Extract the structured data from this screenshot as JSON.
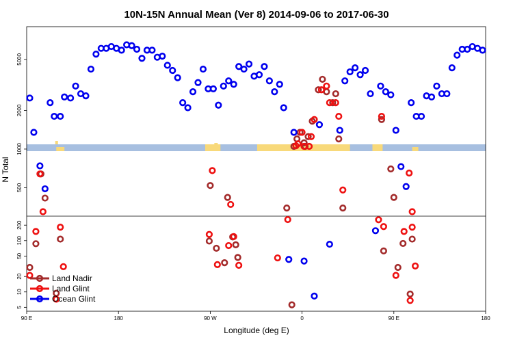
{
  "chart_data": {
    "type": "scatter",
    "title": "10N-15N Annual Mean (Ver 8)   2014-09-06 to 2017-06-30",
    "xlabel": "Longitude (deg E)",
    "ylabel": "N Total",
    "x_ticks": [
      {
        "pos": 0,
        "label": "90 E"
      },
      {
        "pos": 90,
        "label": "180"
      },
      {
        "pos": 180,
        "label": "90 W"
      },
      {
        "pos": 270,
        "label": "0"
      },
      {
        "pos": 360,
        "label": "90 E"
      },
      {
        "pos": 450,
        "label": "180"
      }
    ],
    "xlim": [
      0,
      450
    ],
    "upper_panel": {
      "scale": "log",
      "ylim": [
        300,
        9000
      ],
      "ticks": [
        500,
        1000,
        2000,
        5000
      ]
    },
    "lower_panel": {
      "scale": "log",
      "ylim": [
        4.2,
        300
      ],
      "ticks": [
        5,
        10,
        20,
        50,
        100,
        200
      ]
    },
    "land_strip_color": "#a7bfe0",
    "land_fill_color": "#f8d97a",
    "series": [
      {
        "name": "Land Nadir",
        "color": "#a32b2b",
        "points": [
          [
            3,
            30
          ],
          [
            9,
            87
          ],
          [
            14,
            640
          ],
          [
            18,
            415
          ],
          [
            33,
            107
          ],
          [
            29,
            9.4
          ],
          [
            179,
            98
          ],
          [
            180,
            520
          ],
          [
            186,
            71
          ],
          [
            194,
            37
          ],
          [
            197,
            420
          ],
          [
            202,
            118
          ],
          [
            205,
            83
          ],
          [
            207,
            47
          ],
          [
            260,
            5.6
          ],
          [
            255,
            347
          ],
          [
            262,
            1050
          ],
          [
            265,
            1200
          ],
          [
            268,
            1350
          ],
          [
            272,
            1120
          ],
          [
            273,
            1050
          ],
          [
            276,
            1250
          ],
          [
            280,
            1650
          ],
          [
            286,
            2900
          ],
          [
            290,
            3500
          ],
          [
            294,
            2800
          ],
          [
            300,
            2300
          ],
          [
            303,
            2700
          ],
          [
            306,
            1200
          ],
          [
            310,
            347
          ],
          [
            348,
            1700
          ],
          [
            350,
            63
          ],
          [
            357,
            700
          ],
          [
            360,
            420
          ],
          [
            364,
            30
          ],
          [
            369,
            88
          ],
          [
            376,
            9.1
          ],
          [
            378,
            107
          ]
        ]
      },
      {
        "name": "Land Glint",
        "color": "#ee1111",
        "points": [
          [
            3,
            21
          ],
          [
            9,
            151
          ],
          [
            13,
            640
          ],
          [
            16,
            325
          ],
          [
            33,
            183
          ],
          [
            36,
            31
          ],
          [
            29,
            7.2
          ],
          [
            179,
            132
          ],
          [
            182,
            680
          ],
          [
            187,
            34
          ],
          [
            198,
            80
          ],
          [
            200,
            370
          ],
          [
            203,
            120
          ],
          [
            208,
            33
          ],
          [
            246,
            46
          ],
          [
            256,
            257
          ],
          [
            264,
            1060
          ],
          [
            266,
            1100
          ],
          [
            270,
            1350
          ],
          [
            272,
            1050
          ],
          [
            277,
            1050
          ],
          [
            279,
            1250
          ],
          [
            282,
            1700
          ],
          [
            289,
            2900
          ],
          [
            294,
            3100
          ],
          [
            303,
            2300
          ],
          [
            297,
            2300
          ],
          [
            306,
            1800
          ],
          [
            310,
            480
          ],
          [
            345,
            255
          ],
          [
            348,
            1800
          ],
          [
            350,
            188
          ],
          [
            362,
            21
          ],
          [
            370,
            151
          ],
          [
            375,
            650
          ],
          [
            378,
            325
          ],
          [
            376,
            6.8
          ],
          [
            378,
            183
          ],
          [
            381,
            32
          ]
        ]
      },
      {
        "name": "Ocean Glint",
        "color": "#0000ee",
        "points": [
          [
            3,
            2500
          ],
          [
            7,
            1350
          ],
          [
            13,
            740
          ],
          [
            18,
            490
          ],
          [
            23,
            2300
          ],
          [
            27,
            1800
          ],
          [
            33,
            1800
          ],
          [
            37,
            2550
          ],
          [
            43,
            2500
          ],
          [
            48,
            3100
          ],
          [
            53,
            2700
          ],
          [
            58,
            2600
          ],
          [
            63,
            4200
          ],
          [
            68,
            5500
          ],
          [
            73,
            6100
          ],
          [
            78,
            6100
          ],
          [
            83,
            6300
          ],
          [
            88,
            6100
          ],
          [
            93,
            5900
          ],
          [
            98,
            6500
          ],
          [
            103,
            6400
          ],
          [
            108,
            6000
          ],
          [
            113,
            5100
          ],
          [
            118,
            5900
          ],
          [
            123,
            5900
          ],
          [
            128,
            5200
          ],
          [
            133,
            5300
          ],
          [
            138,
            4500
          ],
          [
            143,
            4100
          ],
          [
            148,
            3600
          ],
          [
            153,
            2300
          ],
          [
            158,
            2100
          ],
          [
            163,
            2800
          ],
          [
            168,
            3300
          ],
          [
            173,
            4200
          ],
          [
            178,
            2950
          ],
          [
            183,
            2950
          ],
          [
            188,
            2200
          ],
          [
            193,
            3100
          ],
          [
            198,
            3400
          ],
          [
            203,
            3200
          ],
          [
            208,
            4400
          ],
          [
            213,
            4200
          ],
          [
            218,
            4600
          ],
          [
            223,
            3700
          ],
          [
            228,
            3800
          ],
          [
            233,
            4400
          ],
          [
            238,
            3400
          ],
          [
            243,
            2800
          ],
          [
            248,
            3200
          ],
          [
            252,
            2100
          ],
          [
            257,
            43
          ],
          [
            262,
            1350
          ],
          [
            272,
            40
          ],
          [
            282,
            8.3
          ],
          [
            287,
            1550
          ],
          [
            297,
            85
          ],
          [
            307,
            1400
          ],
          [
            312,
            3400
          ],
          [
            317,
            4000
          ],
          [
            322,
            4300
          ],
          [
            327,
            3800
          ],
          [
            332,
            4100
          ],
          [
            337,
            2700
          ],
          [
            342,
            156
          ],
          [
            347,
            3100
          ],
          [
            352,
            2800
          ],
          [
            357,
            2650
          ],
          [
            362,
            1400
          ],
          [
            367,
            730
          ],
          [
            372,
            510
          ],
          [
            377,
            2300
          ],
          [
            382,
            1800
          ],
          [
            387,
            1800
          ],
          [
            392,
            2600
          ],
          [
            397,
            2550
          ],
          [
            402,
            3100
          ],
          [
            407,
            2700
          ],
          [
            412,
            2700
          ],
          [
            417,
            4300
          ],
          [
            422,
            5400
          ],
          [
            427,
            6000
          ],
          [
            432,
            6000
          ],
          [
            437,
            6300
          ],
          [
            442,
            6100
          ],
          [
            447,
            5900
          ]
        ]
      }
    ],
    "legend": {
      "placement": "bottom-left"
    }
  }
}
